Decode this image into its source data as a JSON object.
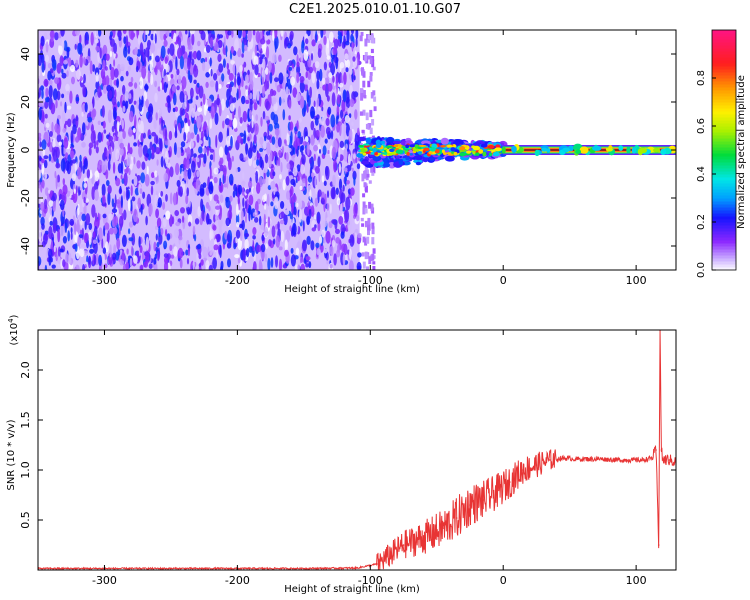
{
  "title": "C2E1.2025.010.01.10.G07",
  "chart_data": [
    {
      "type": "heatmap",
      "title": "C2E1.2025.010.01.10.G07",
      "xlabel": "Height of straight line (km)",
      "ylabel": "Frequency (Hz)",
      "xlim": [
        -350,
        130
      ],
      "ylim": [
        -50,
        50
      ],
      "x_ticks": [
        -300,
        -200,
        -100,
        0,
        100
      ],
      "x_tick_labels": [
        "-300",
        "-200",
        "-100",
        "0",
        "100"
      ],
      "y_ticks": [
        -40,
        -20,
        0,
        20,
        40
      ],
      "y_tick_labels": [
        "-40",
        "-20",
        "0",
        "20",
        "40"
      ],
      "colorbar": {
        "label": "Normalized spectral amplitude",
        "range": [
          0,
          1
        ],
        "ticks": [
          0.0,
          0.2,
          0.4,
          0.6,
          0.8
        ],
        "tick_labels": [
          "0.0",
          "0.2",
          "0.4",
          "0.6",
          "0.8"
        ],
        "colormap": "rainbow"
      },
      "regions": [
        {
          "x_range": [
            -350,
            -108
          ],
          "freq_range": [
            -50,
            50
          ],
          "pattern": "noise",
          "amplitude_range": [
            0.0,
            0.25
          ]
        },
        {
          "x_range": [
            -108,
            0
          ],
          "freq_range": [
            -8,
            4
          ],
          "pattern": "scattered signal near 0 Hz",
          "amplitude_range": [
            0.2,
            0.9
          ]
        },
        {
          "x_range": [
            0,
            130
          ],
          "freq_range": [
            -2,
            2
          ],
          "pattern": "narrow band at 0 Hz",
          "amplitude_range": [
            0.6,
            1.0
          ]
        }
      ],
      "grid": false
    },
    {
      "type": "line",
      "xlabel": "Height of straight line (km)",
      "ylabel": "SNR (10 * v/v)",
      "y_multiplier_label": "(x10",
      "y_multiplier_exp": "4",
      "y_multiplier_close": ")",
      "xlim": [
        -350,
        130
      ],
      "ylim": [
        0,
        24000
      ],
      "x_ticks": [
        -300,
        -200,
        -100,
        0,
        100
      ],
      "x_tick_labels": [
        "-300",
        "-200",
        "-100",
        "0",
        "100"
      ],
      "y_ticks": [
        5000,
        10000,
        15000,
        20000
      ],
      "y_tick_labels": [
        "0.5",
        "1.0",
        "1.5",
        "2.0"
      ],
      "color": "#e83434",
      "x": [
        -350,
        -300,
        -250,
        -200,
        -150,
        -110,
        -95,
        -85,
        -75,
        -65,
        -55,
        -45,
        -35,
        -25,
        -15,
        -5,
        5,
        15,
        25,
        35,
        45,
        55,
        65,
        75,
        85,
        95,
        105,
        112,
        115,
        117,
        118,
        119,
        120,
        125,
        130
      ],
      "values": [
        150,
        150,
        150,
        150,
        150,
        200,
        600,
        1500,
        2500,
        3000,
        3500,
        4200,
        5200,
        6500,
        7000,
        7800,
        8800,
        10000,
        10500,
        11000,
        11200,
        11100,
        11100,
        11100,
        11000,
        11000,
        11000,
        11200,
        12000,
        2500,
        24000,
        12000,
        11000,
        11000,
        10800
      ],
      "grid": false
    }
  ]
}
